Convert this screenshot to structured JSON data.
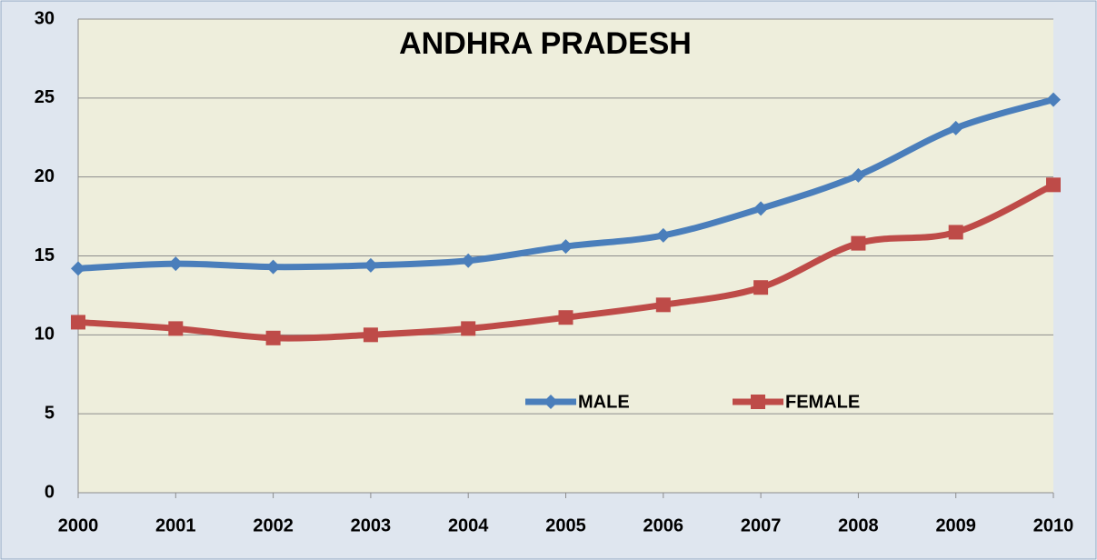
{
  "chart_data": {
    "type": "line",
    "title": "ANDHRA PRADESH",
    "categories": [
      "2000",
      "2001",
      "2002",
      "2003",
      "2004",
      "2005",
      "2006",
      "2007",
      "2008",
      "2009",
      "2010"
    ],
    "series": [
      {
        "name": "MALE",
        "color": "#4a7ebb",
        "marker": "diamond",
        "values": [
          14.2,
          14.5,
          14.3,
          14.4,
          14.7,
          15.6,
          16.3,
          18.0,
          20.1,
          23.1,
          24.9
        ]
      },
      {
        "name": "FEMALE",
        "color": "#be4b48",
        "marker": "square",
        "values": [
          10.8,
          10.4,
          9.8,
          10.0,
          10.4,
          11.1,
          11.9,
          13.0,
          15.8,
          16.5,
          19.5
        ]
      }
    ],
    "ylim": [
      0,
      30
    ],
    "yticks": [
      0,
      5,
      10,
      15,
      20,
      25,
      30
    ],
    "grid": true,
    "smooth": true
  }
}
